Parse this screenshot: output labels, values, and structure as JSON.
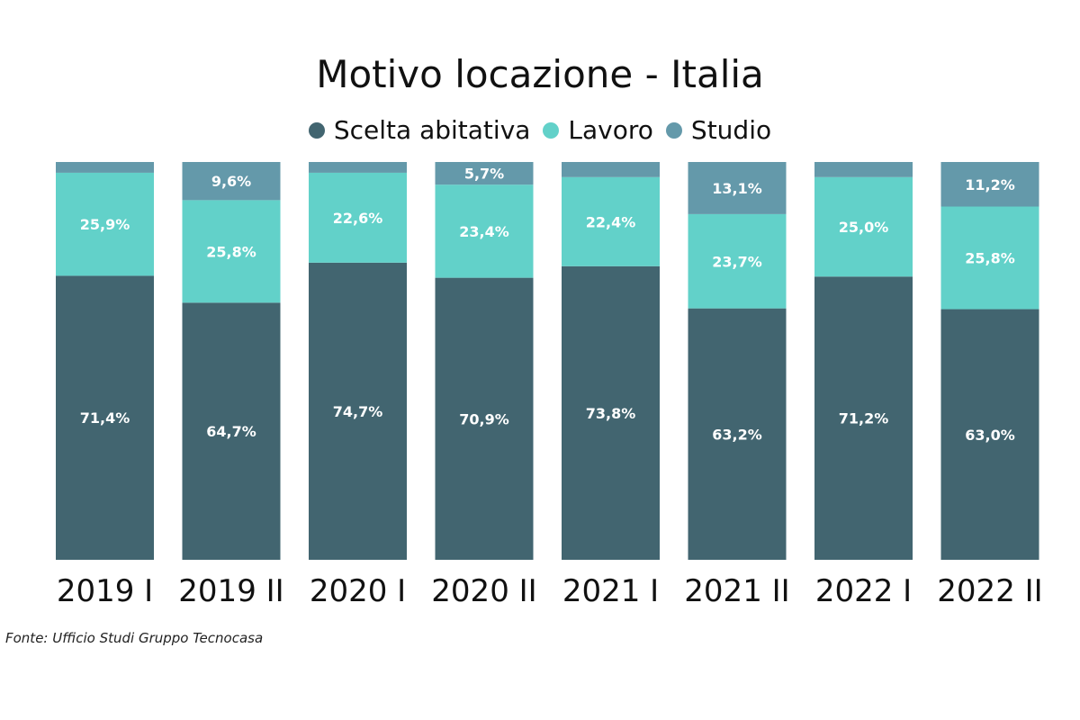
{
  "chart_data": {
    "type": "bar",
    "stacked": true,
    "title": "Motivo locazione - Italia",
    "categories": [
      "2019 I",
      "2019 II",
      "2020 I",
      "2020 II",
      "2021 I",
      "2021 II",
      "2022 I",
      "2022 II"
    ],
    "series": [
      {
        "name": "Scelta abitativa",
        "color": "#426570",
        "values": [
          71.4,
          64.7,
          74.7,
          70.9,
          73.8,
          63.2,
          71.2,
          63.0
        ],
        "labels": [
          "71,4%",
          "64,7%",
          "74,7%",
          "70,9%",
          "73,8%",
          "63,2%",
          "71,2%",
          "63,0%"
        ]
      },
      {
        "name": "Lavoro",
        "color": "#62d1c9",
        "values": [
          25.9,
          25.8,
          22.6,
          23.4,
          22.4,
          23.7,
          25.0,
          25.8
        ],
        "labels": [
          "25,9%",
          "25,8%",
          "22,6%",
          "23,4%",
          "22,4%",
          "23,7%",
          "25,0%",
          "25,8%"
        ]
      },
      {
        "name": "Studio",
        "color": "#6499aa",
        "values": [
          2.7,
          9.6,
          2.7,
          5.7,
          3.8,
          13.1,
          3.8,
          11.2
        ],
        "labels": [
          "",
          "9,6%",
          "",
          "5,7%",
          "",
          "13,1%",
          "",
          "11,2%"
        ]
      }
    ],
    "ylim": [
      0,
      100
    ],
    "xlabel": "",
    "ylabel": "",
    "grid": false,
    "legend": "top"
  },
  "source": "Fonte: Ufficio Studi Gruppo Tecnocasa"
}
